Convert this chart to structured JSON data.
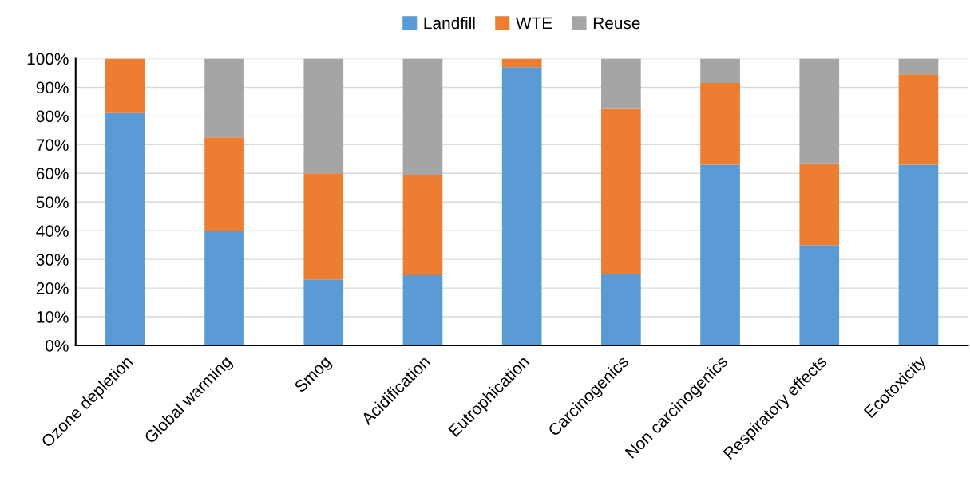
{
  "chart_data": {
    "type": "bar",
    "stacked": true,
    "categories": [
      "Ozone depletion",
      "Global warming",
      "Smog",
      "Acidification",
      "Eutrophication",
      "Carcinogenics",
      "Non carcinogenics",
      "Respiratory effects",
      "Ecotoxicity"
    ],
    "series": [
      {
        "name": "Landfill",
        "color": "#5b9bd5",
        "values": [
          81,
          40,
          23,
          24.5,
          97,
          25,
          63,
          35,
          63
        ]
      },
      {
        "name": "WTE",
        "color": "#ed7d31",
        "values": [
          19,
          32.5,
          37,
          35,
          3,
          57.5,
          28.5,
          28.5,
          31.5
        ]
      },
      {
        "name": "Reuse",
        "color": "#a5a5a5",
        "values": [
          0,
          27.5,
          40,
          40.5,
          0,
          17.5,
          8.5,
          36.5,
          5.5
        ]
      }
    ],
    "ylim": [
      0,
      100
    ],
    "yticks": [
      {
        "value": 0,
        "label": "0%"
      },
      {
        "value": 10,
        "label": "10%"
      },
      {
        "value": 20,
        "label": "20%"
      },
      {
        "value": 30,
        "label": "30%"
      },
      {
        "value": 40,
        "label": "40%"
      },
      {
        "value": 50,
        "label": "50%"
      },
      {
        "value": 60,
        "label": "60%"
      },
      {
        "value": 70,
        "label": "70%"
      },
      {
        "value": 80,
        "label": "80%"
      },
      {
        "value": 90,
        "label": "90%"
      },
      {
        "value": 100,
        "label": "100%"
      }
    ],
    "grid": "y",
    "legend": "top"
  }
}
